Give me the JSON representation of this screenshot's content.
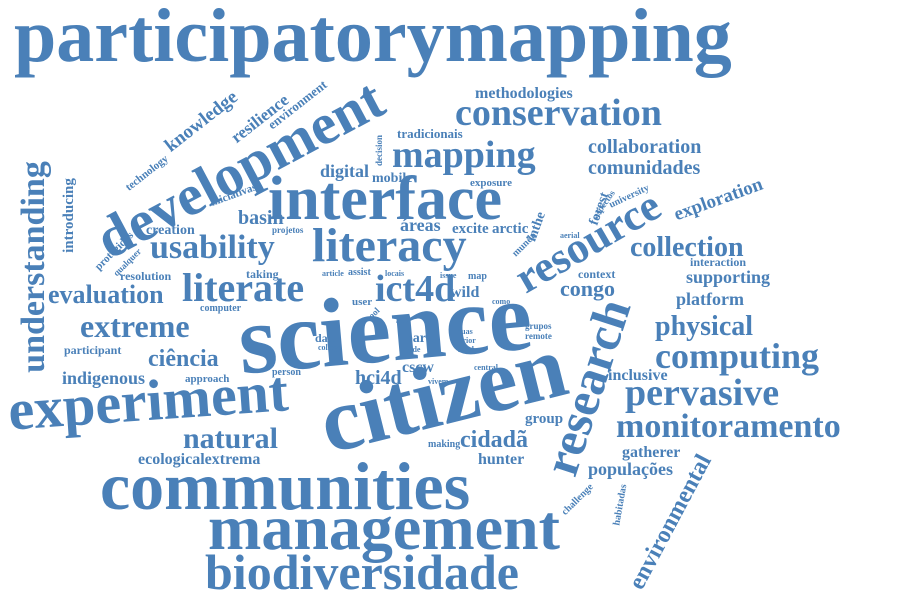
{
  "word_color": "#4a80b8",
  "background_color": "#ffffff",
  "words": [
    "participatorymapping",
    "science",
    "citizen",
    "communities",
    "management",
    "biodiversidade",
    "development",
    "interface",
    "experiment",
    "research",
    "resource",
    "literacy",
    "conservation",
    "literate",
    "ict4d",
    "mapping",
    "understanding",
    "pervasive",
    "monitoramento",
    "computing",
    "usability",
    "extreme",
    "evaluation",
    "physical",
    "natural",
    "collection",
    "environmental",
    "knowledge",
    "resilience",
    "environment",
    "methodologies",
    "collaboration",
    "comunidades",
    "digital",
    "mobile",
    "exploration",
    "congo",
    "supporting",
    "platform",
    "basin",
    "creation",
    "áreas",
    "excite",
    "arctic",
    "ciência",
    "indigenous",
    "hci4d",
    "cscw",
    "cidadã",
    "ecological",
    "extrema",
    "hunter",
    "gatherer",
    "populações",
    "inclusive",
    "group",
    "forest",
    "context",
    "interaction",
    "introducing",
    "technology",
    "tradicionais",
    "iniciativas",
    "protegidas",
    "resolution",
    "participant",
    "approach",
    "computer",
    "taking",
    "wild",
    "data",
    "para",
    "user",
    "tool",
    "person",
    "making",
    "challenge",
    "habitadas",
    "mundo",
    "inthe",
    "map",
    "decision",
    "exposure",
    "university",
    "aspectos",
    "projetos",
    "qualquer",
    "article",
    "assist",
    "locais",
    "issue",
    "como",
    "grupos",
    "remote",
    "college",
    "bode",
    "suas",
    "prior",
    "local",
    "vivem",
    "central",
    "aerial",
    "area"
  ]
}
